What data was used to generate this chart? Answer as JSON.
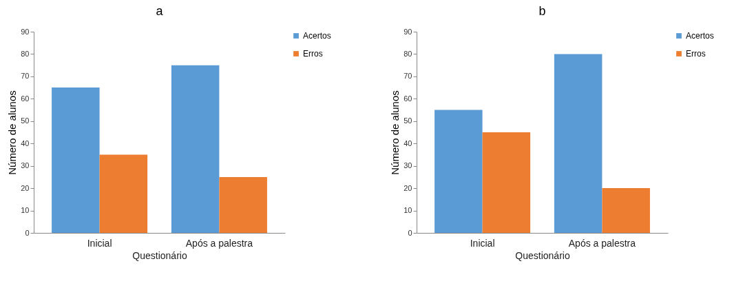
{
  "chart_data": [
    {
      "type": "bar",
      "title": "a",
      "xlabel": "Questionário",
      "ylabel": "Número de alunos",
      "categories": [
        "Inicial",
        "Após a palestra"
      ],
      "series": [
        {
          "name": "Acertos",
          "color": "#5b9bd5",
          "values": [
            65,
            75
          ]
        },
        {
          "name": "Erros",
          "color": "#ed7d31",
          "values": [
            35,
            25
          ]
        }
      ],
      "ylim": [
        0,
        90
      ],
      "yticks": [
        0,
        10,
        20,
        30,
        40,
        50,
        60,
        70,
        80,
        90
      ],
      "grid": false,
      "legend": "right"
    },
    {
      "type": "bar",
      "title": "b",
      "xlabel": "Questionário",
      "ylabel": "Número de alunos",
      "categories": [
        "Inicial",
        "Após a palestra"
      ],
      "series": [
        {
          "name": "Acertos",
          "color": "#5b9bd5",
          "values": [
            55,
            80
          ]
        },
        {
          "name": "Erros",
          "color": "#ed7d31",
          "values": [
            45,
            20
          ]
        }
      ],
      "ylim": [
        0,
        90
      ],
      "yticks": [
        0,
        10,
        20,
        30,
        40,
        50,
        60,
        70,
        80,
        90
      ],
      "grid": false,
      "legend": "right"
    }
  ]
}
